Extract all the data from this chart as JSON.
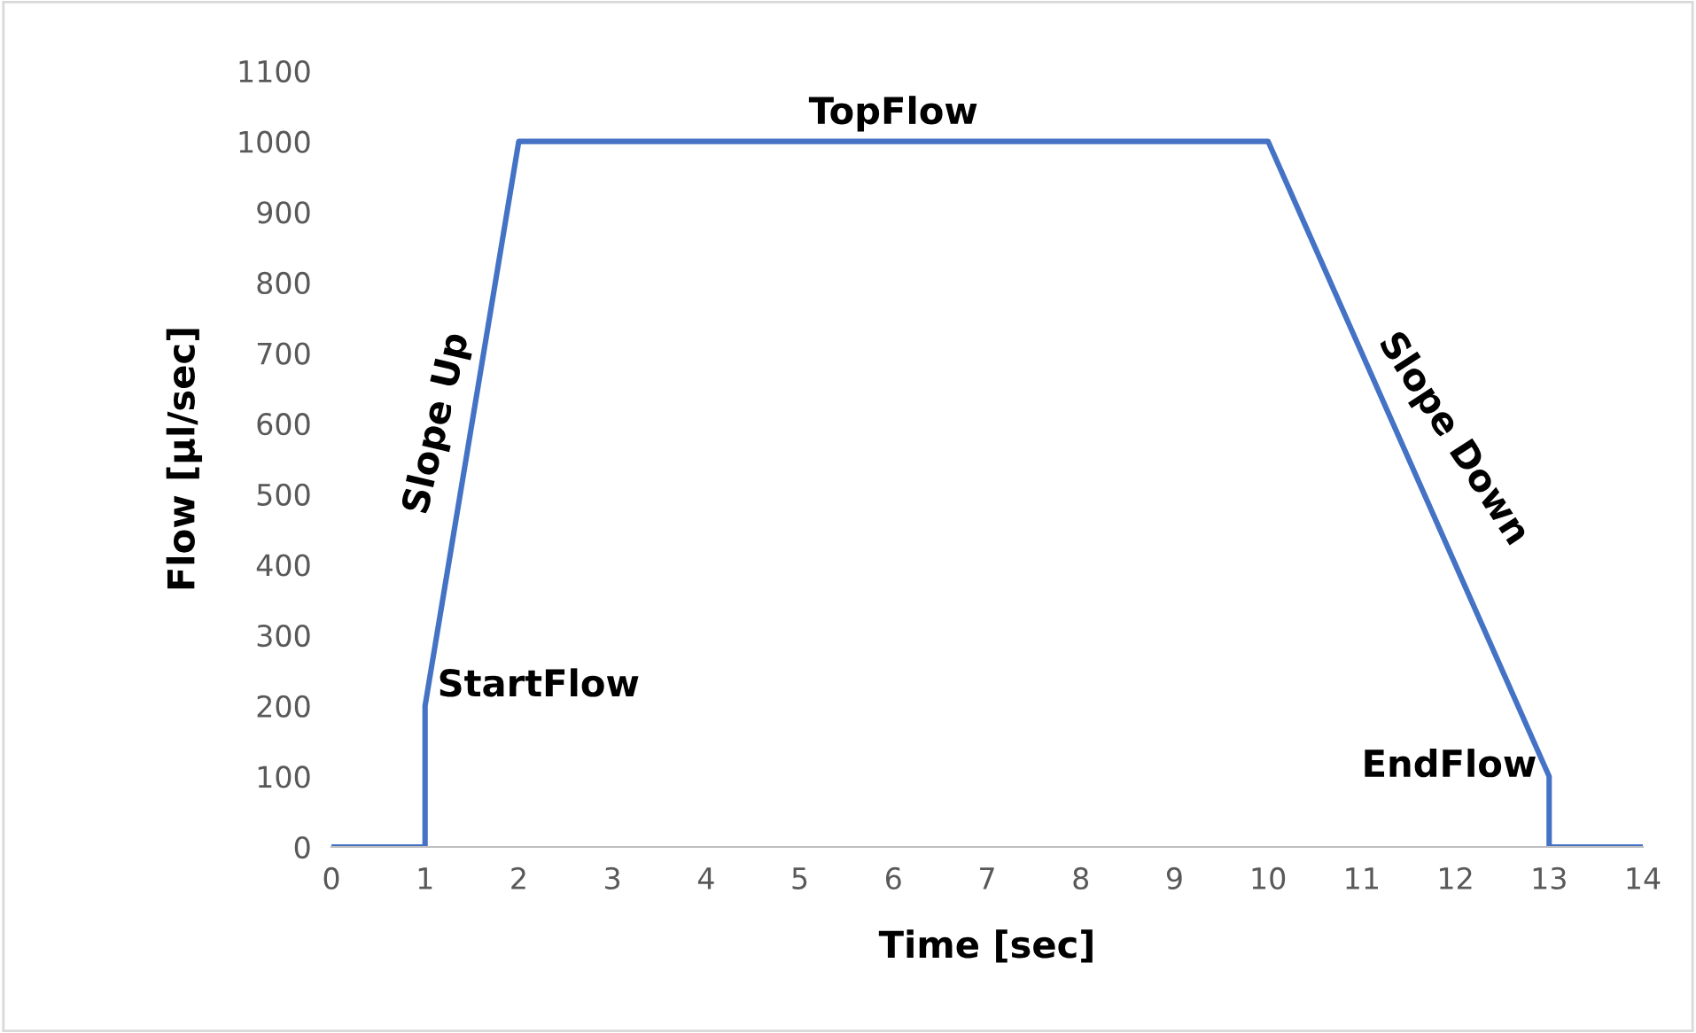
{
  "chart_data": {
    "type": "line",
    "xlabel": "Time [sec]",
    "ylabel": "Flow [µl/sec]",
    "series": [
      {
        "color": "#4472c4",
        "x": [
          0,
          1,
          1,
          2,
          10,
          13,
          13,
          14
        ],
        "values": [
          0,
          0,
          200,
          1000,
          1000,
          100,
          0,
          0
        ]
      }
    ],
    "xlim": [
      0,
      14
    ],
    "xticks": [
      0,
      1,
      2,
      3,
      4,
      5,
      6,
      7,
      8,
      9,
      10,
      11,
      12,
      13,
      14
    ],
    "ylim": [
      0,
      1100
    ],
    "yticks": [
      0,
      100,
      200,
      300,
      400,
      500,
      600,
      700,
      800,
      900,
      1000,
      1100
    ],
    "grid": false,
    "legend": false,
    "marker": "none",
    "line_style": "solid",
    "annotations": [
      {
        "text": "StartFlow",
        "x": 1,
        "y": 200
      },
      {
        "text": "Slope Up",
        "x": 1.5,
        "y": 600
      },
      {
        "text": "TopFlow",
        "x": 6,
        "y": 1000
      },
      {
        "text": "Slope Down",
        "x": 11.5,
        "y": 550
      },
      {
        "text": "EndFlow",
        "x": 13,
        "y": 100
      }
    ]
  }
}
